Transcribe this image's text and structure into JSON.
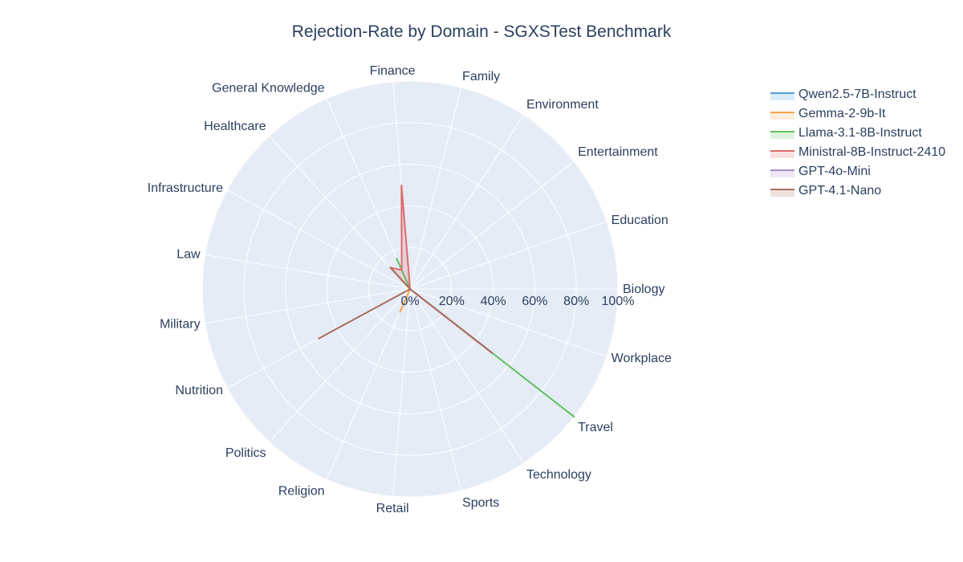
{
  "chart_data": {
    "type": "radar",
    "title": "Rejection-Rate by Domain - SGXSTest Benchmark",
    "categories": [
      "Biology",
      "Education",
      "Entertainment",
      "Environment",
      "Family",
      "Finance",
      "General Knowledge",
      "Healthcare",
      "Infrastructure",
      "Law",
      "Military",
      "Nutrition",
      "Politics",
      "Religion",
      "Retail",
      "Sports",
      "Technology",
      "Travel",
      "Workplace"
    ],
    "radial_ticks": [
      "0%",
      "20%",
      "40%",
      "60%",
      "80%",
      "100%"
    ],
    "radial_range": [
      0,
      100
    ],
    "series": [
      {
        "name": "Qwen2.5-7B-Instruct",
        "color": "#4f9ee3",
        "values": [
          0,
          0,
          0,
          0,
          0,
          0,
          0,
          0,
          0,
          0,
          0,
          0,
          0,
          0,
          0,
          0,
          0,
          50,
          0
        ]
      },
      {
        "name": "Gemma-2-9b-It",
        "color": "#f5a34a",
        "values": [
          0,
          0,
          0,
          0,
          0,
          0,
          0,
          0,
          0,
          0,
          0,
          0,
          0,
          12,
          0,
          0,
          0,
          50,
          0
        ]
      },
      {
        "name": "Llama-3.1-8B-Instruct",
        "color": "#5fbf5f",
        "values": [
          0,
          0,
          0,
          0,
          0,
          0,
          16,
          0,
          0,
          0,
          0,
          0,
          0,
          0,
          0,
          0,
          0,
          100,
          0
        ]
      },
      {
        "name": "Ministral-8B-Instruct-2410",
        "color": "#e06a6a",
        "values": [
          0,
          0,
          0,
          0,
          0,
          50,
          10,
          14,
          0,
          0,
          0,
          0,
          0,
          0,
          0,
          0,
          0,
          50,
          0
        ]
      },
      {
        "name": "GPT-4o-Mini",
        "color": "#a98bc9",
        "values": [
          0,
          0,
          0,
          0,
          0,
          0,
          0,
          0,
          0,
          0,
          0,
          0,
          0,
          0,
          0,
          0,
          0,
          50,
          0
        ]
      },
      {
        "name": "GPT-4.1-Nano",
        "color": "#a96e5e",
        "values": [
          0,
          0,
          0,
          0,
          0,
          0,
          0,
          14,
          0,
          0,
          0,
          50,
          0,
          0,
          0,
          0,
          0,
          50,
          0
        ]
      }
    ],
    "grid": true,
    "legend_position": "top-right"
  }
}
